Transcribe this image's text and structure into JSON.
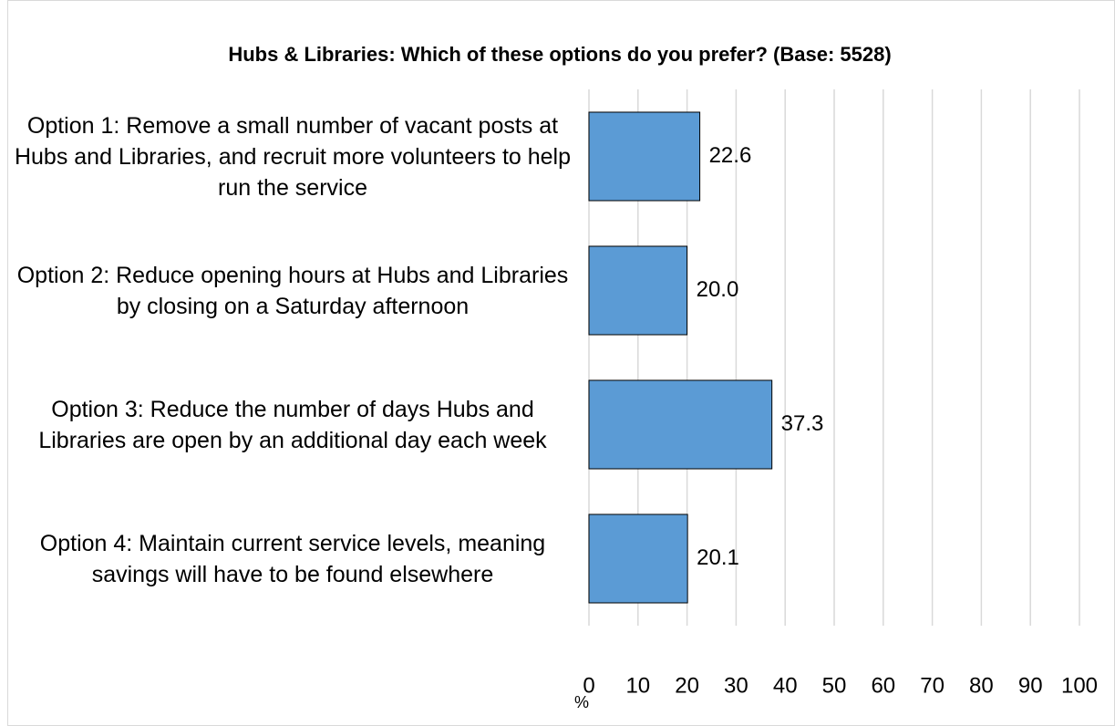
{
  "chart_data": {
    "type": "bar",
    "orientation": "horizontal",
    "title": "Hubs & Libraries: Which of these options do you prefer? (Base: 5528)",
    "categories": [
      "Option 1: Remove a small number of vacant posts at Hubs and Libraries, and recruit more volunteers to help run the service",
      "Option 2: Reduce opening hours at Hubs and Libraries by closing on a Saturday afternoon",
      "Option 3: Reduce the number of days Hubs and Libraries are open by an additional day each week",
      "Option 4: Maintain current service levels, meaning savings will have to be found elsewhere"
    ],
    "values": [
      22.6,
      20.0,
      37.3,
      20.1
    ],
    "value_labels": [
      "22.6",
      "20.0",
      "37.3",
      "20.1"
    ],
    "color": "#5b9bd5",
    "xlim": [
      0,
      100
    ],
    "xticks": [
      0,
      10,
      20,
      30,
      40,
      50,
      60,
      70,
      80,
      90,
      100
    ],
    "xlabel": "%",
    "grid": true
  }
}
